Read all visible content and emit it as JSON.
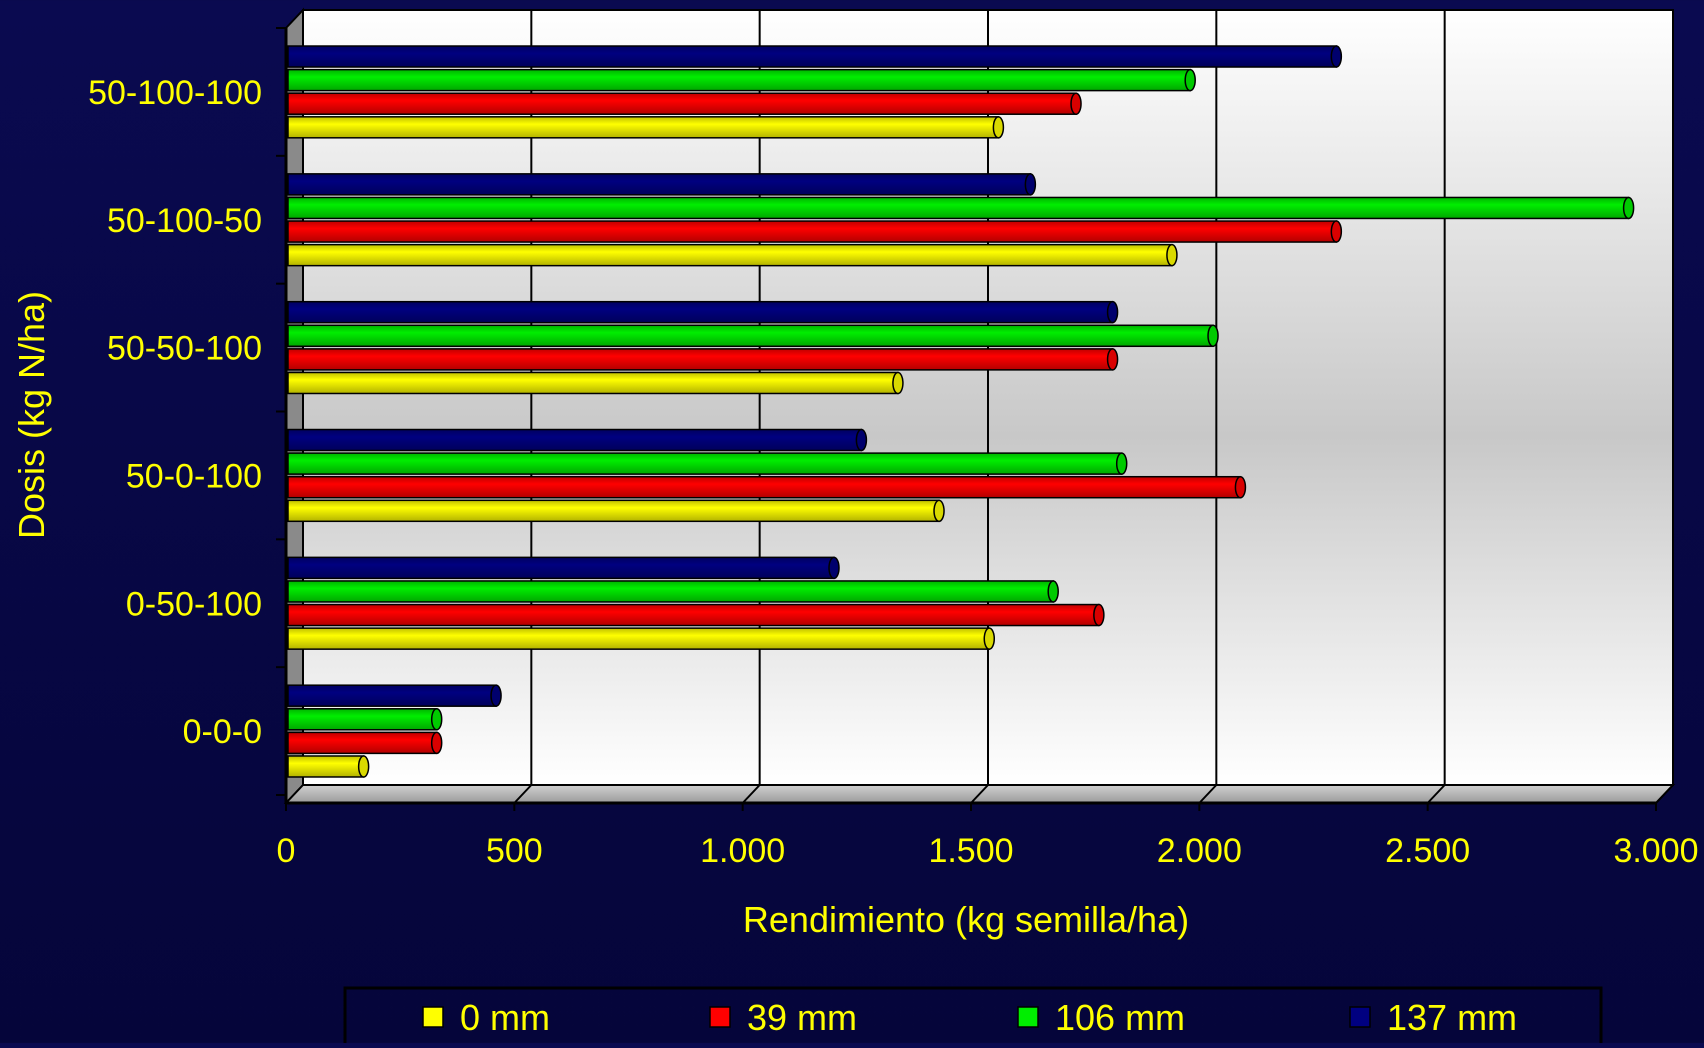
{
  "chart_data": {
    "type": "bar",
    "orientation": "horizontal",
    "style": "3d-cylinder",
    "title": "",
    "xlabel": "Rendimiento (kg semilla/ha)",
    "ylabel": "Dosis (kg N/ha)",
    "xlim": [
      0,
      3000
    ],
    "xticks": [
      0,
      500,
      1000,
      1500,
      2000,
      2500,
      3000
    ],
    "xtick_labels": [
      "0",
      "500",
      "1.000",
      "1.500",
      "2.000",
      "2.500",
      "3.000"
    ],
    "categories": [
      "0-0-0",
      "0-50-100",
      "50-0-100",
      "50-50-100",
      "50-100-50",
      "50-100-100"
    ],
    "series": [
      {
        "name": "0 mm",
        "color": "#ffff00",
        "values": [
          170,
          1540,
          1430,
          1340,
          1940,
          1560
        ]
      },
      {
        "name": "39 mm",
        "color": "#ff0000",
        "values": [
          330,
          1780,
          2090,
          1810,
          2300,
          1730
        ]
      },
      {
        "name": "106 mm",
        "color": "#00ee00",
        "values": [
          330,
          1680,
          1830,
          2030,
          2940,
          1980
        ]
      },
      {
        "name": "137 mm",
        "color": "#000080",
        "values": [
          460,
          1200,
          1260,
          1810,
          1630,
          2300
        ]
      }
    ],
    "grid": true,
    "legend_position": "bottom"
  }
}
